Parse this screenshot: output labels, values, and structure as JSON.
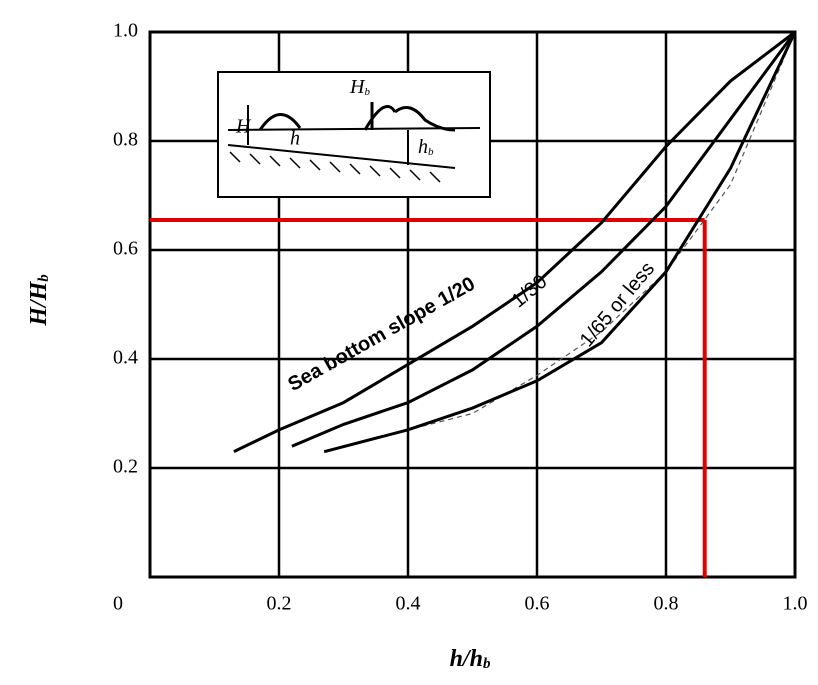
{
  "chart_data": {
    "type": "line",
    "x_label": "h/h",
    "x_label_sub": "b",
    "y_label": "H/H",
    "y_label_sub": "b",
    "xlim": [
      0,
      1
    ],
    "ylim": [
      0,
      1
    ],
    "xticks": [
      0,
      0.2,
      0.4,
      0.6,
      0.8,
      {
        "value": 1,
        "label": "1.0"
      }
    ],
    "yticks": [
      0.2,
      0.4,
      0.6,
      0.8,
      {
        "value": 1,
        "label": "1.0"
      }
    ],
    "grid": true,
    "series": [
      {
        "name": "Sea bottom slope 1/20",
        "color": "#000000",
        "dash": false,
        "x": [
          0.13,
          0.2,
          0.3,
          0.4,
          0.5,
          0.6,
          0.7,
          0.8,
          0.9,
          1.0
        ],
        "values": [
          0.23,
          0.27,
          0.32,
          0.39,
          0.46,
          0.54,
          0.65,
          0.79,
          0.91,
          1.0
        ]
      },
      {
        "name": "1/30",
        "color": "#000000",
        "dash": false,
        "x": [
          0.22,
          0.3,
          0.4,
          0.5,
          0.6,
          0.7,
          0.8,
          0.9,
          1.0
        ],
        "values": [
          0.24,
          0.28,
          0.32,
          0.38,
          0.46,
          0.56,
          0.68,
          0.84,
          1.0
        ]
      },
      {
        "color": "#555555",
        "dash": true,
        "x": [
          0.3,
          0.4,
          0.5,
          0.6,
          0.7,
          0.8,
          0.9,
          1.0
        ],
        "values": [
          0.24,
          0.27,
          0.3,
          0.37,
          0.45,
          0.56,
          0.72,
          1.0
        ]
      },
      {
        "name": "1/65 or less",
        "color": "#000000",
        "dash": false,
        "x": [
          0.27,
          0.4,
          0.5,
          0.6,
          0.7,
          0.8,
          0.9,
          1.0
        ],
        "values": [
          0.23,
          0.27,
          0.31,
          0.36,
          0.43,
          0.56,
          0.75,
          1.0
        ]
      }
    ],
    "reference": {
      "x": 0.86,
      "y": 0.655,
      "color": "#e00000"
    },
    "inset": {
      "wave": "H",
      "depth": "h",
      "breaker": "H",
      "breaker_depth": "h",
      "sub": "b"
    }
  }
}
